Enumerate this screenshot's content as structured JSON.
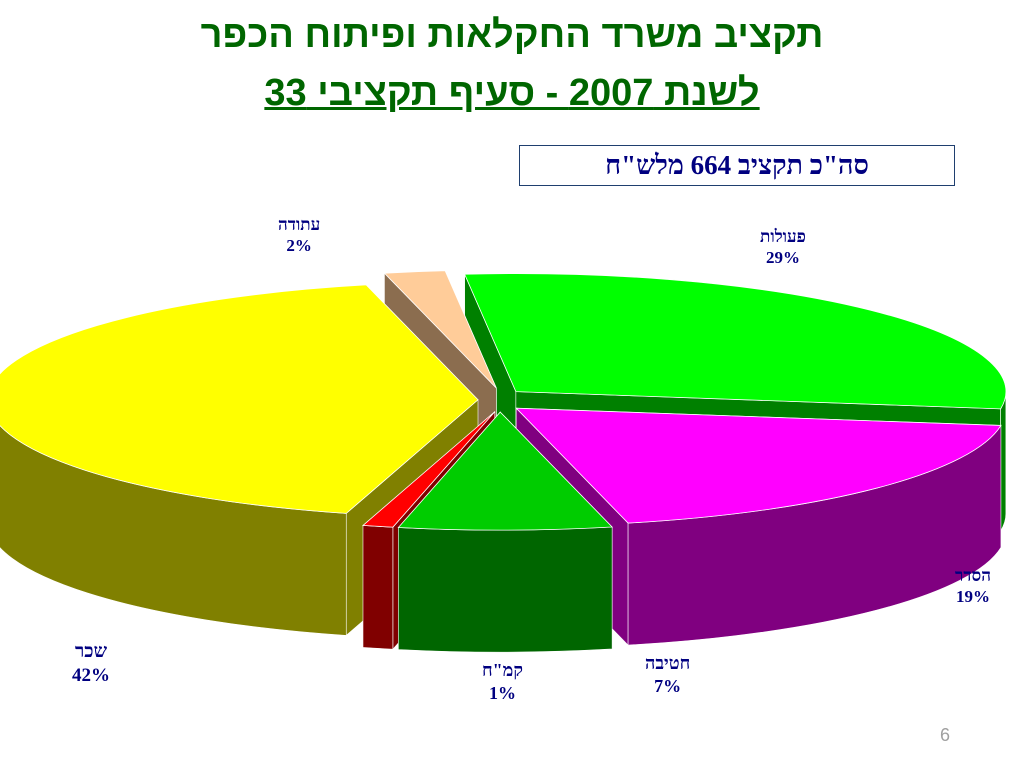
{
  "header": {
    "title_line1": "תקציב משרד החקלאות ופיתוח הכפר",
    "title_line2": "לשנת 2007 - סעיף תקציבי 33",
    "total_label": "סה\"כ תקציב 664 מלש\"ח"
  },
  "chart_data": {
    "type": "pie",
    "title": "תקציב משרד החקלאות ופיתוח הכפר לשנת 2007 - סעיף תקציבי 33",
    "subtitle": "סה\"כ תקציב 664 מלש\"ח",
    "slices": [
      {
        "label": "פעולות",
        "value": 29,
        "value_label": "29%",
        "color": "#00ff00",
        "side_color": "#008000"
      },
      {
        "label": "הסדר",
        "value": 19,
        "value_label": "19%",
        "color": "#ff00ff",
        "side_color": "#800080"
      },
      {
        "label": "חטיבה",
        "value": 7,
        "value_label": "7%",
        "color": "#00cc00",
        "side_color": "#006600"
      },
      {
        "label": "קמ\"ח",
        "value": 1,
        "value_label": "1%",
        "color": "#ff0000",
        "side_color": "#800000"
      },
      {
        "label": "שכר",
        "value": 42,
        "value_label": "42%",
        "color": "#ffff00",
        "side_color": "#808000"
      },
      {
        "label": "עתודה",
        "value": 2,
        "value_label": "2%",
        "color": "#ffcc99",
        "side_color": "#8b6d4f"
      }
    ]
  },
  "footer": {
    "page_number": "6"
  }
}
